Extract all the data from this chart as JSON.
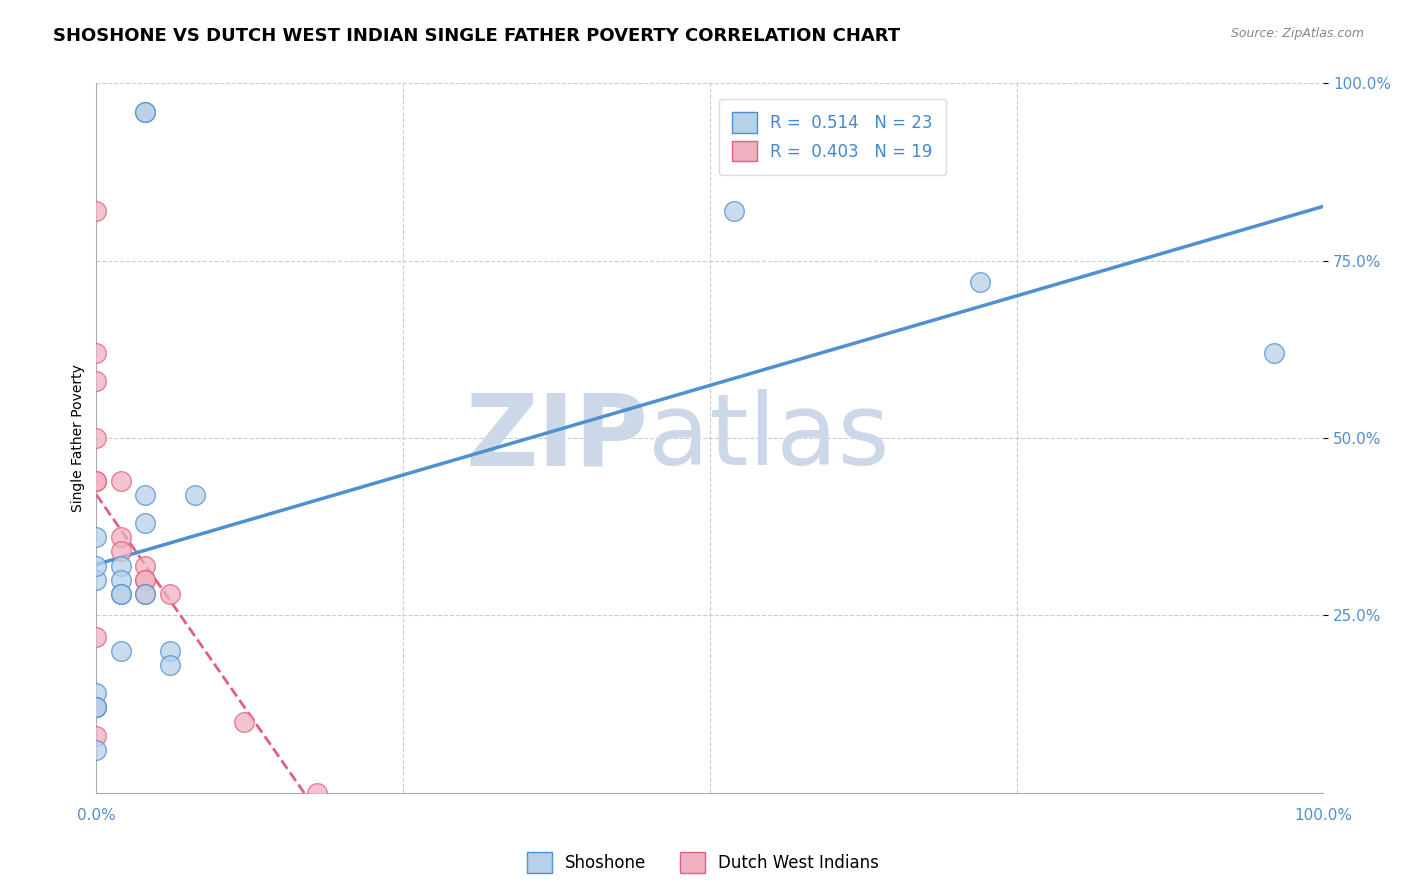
{
  "title": "SHOSHONE VS DUTCH WEST INDIAN SINGLE FATHER POVERTY CORRELATION CHART",
  "source": "Source: ZipAtlas.com",
  "ylabel": "Single Father Poverty",
  "shoshone_R": "0.514",
  "shoshone_N": "23",
  "dutch_R": "0.403",
  "dutch_N": "19",
  "shoshone_color": "#b8d0e8",
  "dutch_color": "#f0b0c0",
  "shoshone_line_color": "#5090d0",
  "dutch_line_color": "#e06080",
  "background_color": "#ffffff",
  "watermark_zip": "ZIP",
  "watermark_atlas": "atlas",
  "watermark_color": "#ccd8e8",
  "legend_R_color": "#4488cc",
  "shoshone_x": [
    0.04,
    0.04,
    0.0,
    0.04,
    0.04,
    0.0,
    0.0,
    0.02,
    0.02,
    0.02,
    0.02,
    0.04,
    0.02,
    0.08,
    0.06,
    0.06,
    0.0,
    0.0,
    0.0,
    0.0,
    0.52,
    0.72,
    0.96
  ],
  "shoshone_y": [
    0.96,
    0.96,
    0.3,
    0.42,
    0.38,
    0.36,
    0.32,
    0.32,
    0.3,
    0.28,
    0.28,
    0.28,
    0.2,
    0.42,
    0.2,
    0.18,
    0.14,
    0.12,
    0.12,
    0.06,
    0.82,
    0.72,
    0.62
  ],
  "dutch_x": [
    0.0,
    0.0,
    0.0,
    0.0,
    0.0,
    0.0,
    0.02,
    0.02,
    0.02,
    0.04,
    0.04,
    0.04,
    0.04,
    0.06,
    0.0,
    0.0,
    0.12,
    0.0,
    0.18
  ],
  "dutch_y": [
    0.82,
    0.62,
    0.58,
    0.5,
    0.44,
    0.44,
    0.44,
    0.36,
    0.34,
    0.32,
    0.3,
    0.3,
    0.28,
    0.28,
    0.22,
    0.12,
    0.1,
    0.08,
    0.0
  ],
  "xlim": [
    0.0,
    1.0
  ],
  "ylim": [
    0.0,
    1.0
  ],
  "ytick_vals": [
    0.25,
    0.5,
    0.75,
    1.0
  ],
  "ytick_labels": [
    "25.0%",
    "50.0%",
    "75.0%",
    "100.0%"
  ],
  "xtick_vals": [
    0.0,
    0.25,
    0.5,
    0.75,
    1.0
  ],
  "xtick_labels_show": [
    "0.0%",
    "",
    "",
    "",
    "100.0%"
  ],
  "title_fontsize": 13,
  "axis_label_fontsize": 10,
  "tick_fontsize": 11,
  "legend_fontsize": 12
}
